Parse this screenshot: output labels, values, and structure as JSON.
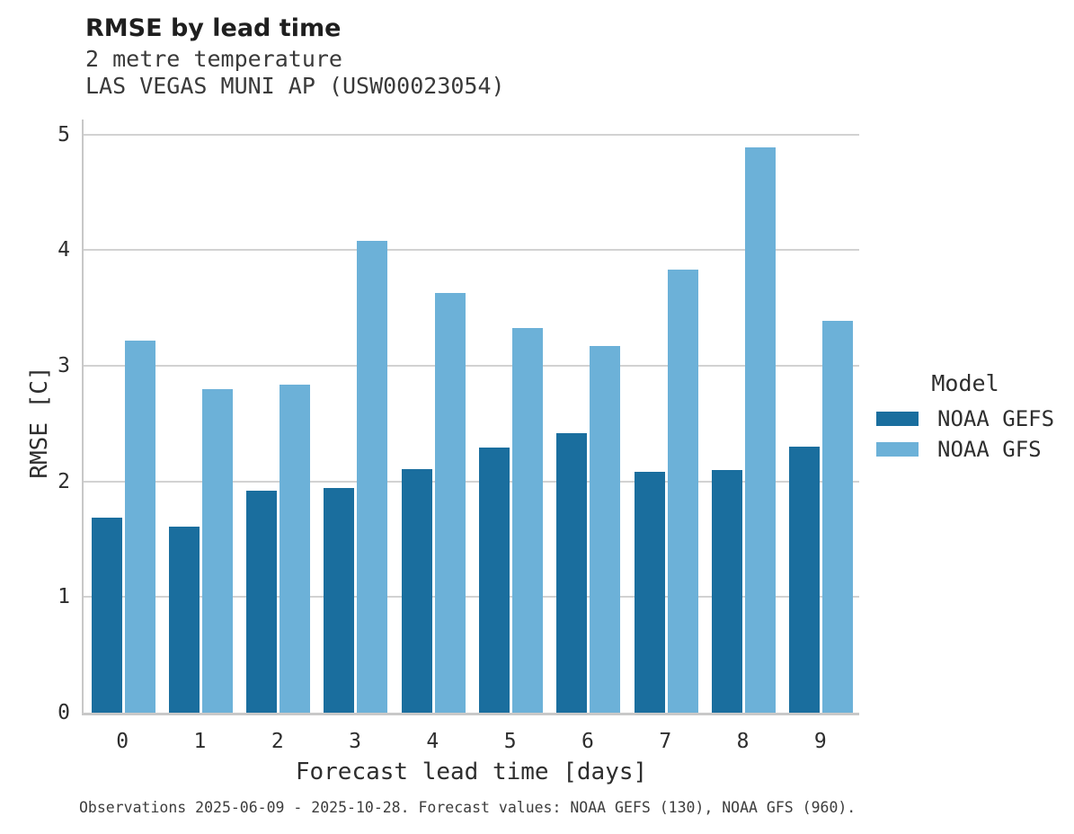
{
  "header": {
    "title": "RMSE by lead time",
    "subtitle1": "2 metre temperature",
    "subtitle2": "LAS VEGAS MUNI AP (USW00023054)"
  },
  "chart_data": {
    "type": "bar",
    "title": "RMSE by lead time",
    "subtitle": "2 metre temperature — LAS VEGAS MUNI AP (USW00023054)",
    "categories": [
      "0",
      "1",
      "2",
      "3",
      "4",
      "5",
      "6",
      "7",
      "8",
      "9"
    ],
    "series": [
      {
        "name": "NOAA GEFS",
        "color": "#1a6e9e",
        "values": [
          1.69,
          1.61,
          1.92,
          1.94,
          2.11,
          2.29,
          2.42,
          2.08,
          2.1,
          2.3
        ]
      },
      {
        "name": "NOAA GFS",
        "color": "#6cb1d8",
        "values": [
          3.22,
          2.8,
          2.84,
          4.08,
          3.63,
          3.33,
          3.17,
          3.83,
          4.89,
          3.39
        ]
      }
    ],
    "xlabel": "Forecast lead time [days]",
    "ylabel": "RMSE [C]",
    "ylim": [
      0,
      5.13
    ],
    "yticks": [
      0,
      1,
      2,
      3,
      4,
      5
    ],
    "grid": "horizontal",
    "legend_title": "Model",
    "legend_position": "right-center"
  },
  "colors": {
    "gefs": "#1a6e9e",
    "gfs": "#6cb1d8",
    "gridline": "#d2d2d2",
    "spine": "#c8c8c8",
    "background": "#ffffff"
  },
  "caption": "Observations 2025-06-09 - 2025-10-28. Forecast values: NOAA GEFS (130), NOAA GFS (960)."
}
